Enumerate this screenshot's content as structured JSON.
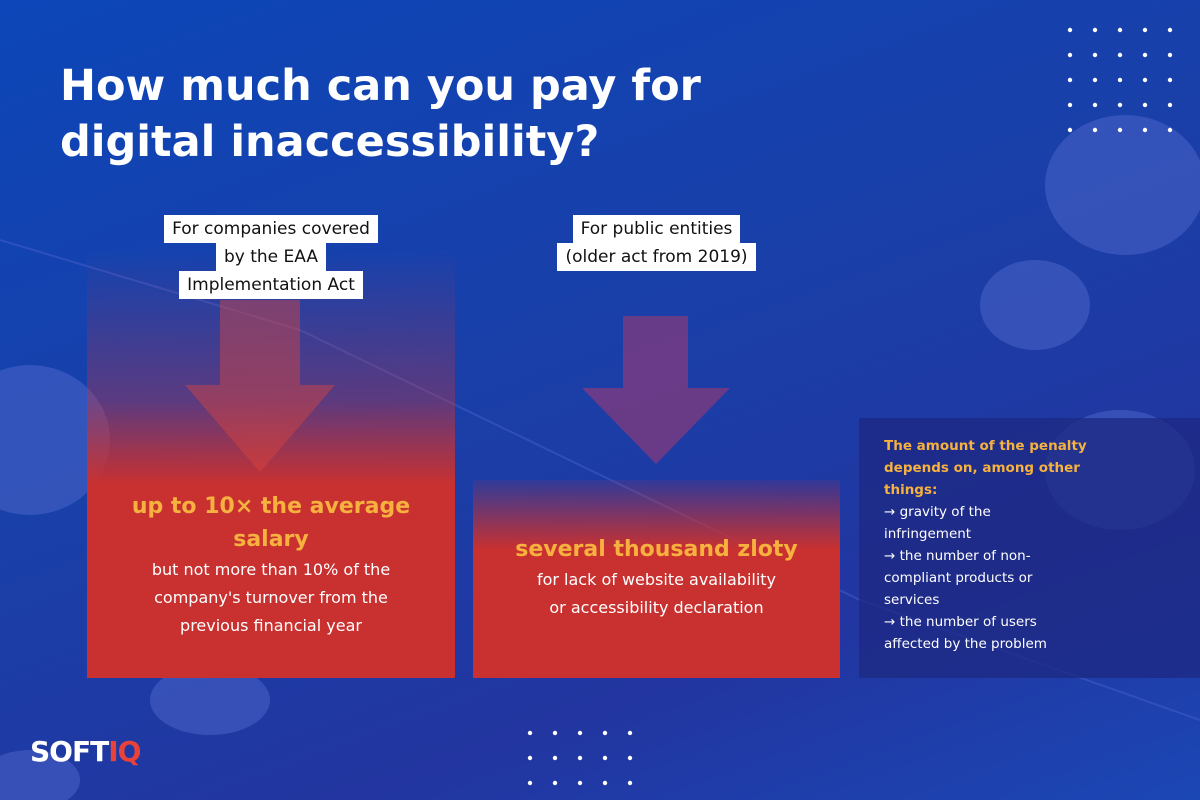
{
  "title": {
    "lines": [
      "How much can you pay for",
      "digital inaccessibility?"
    ]
  },
  "columns": [
    {
      "label": [
        "For companies covered",
        "by the EAA",
        "Implementation Act"
      ],
      "headline": [
        "up to 10× the average",
        "salary"
      ],
      "body": [
        "but not more than 10% of the",
        "company's turnover from the",
        "previous financial year"
      ]
    },
    {
      "label": [
        "For public entities",
        "(older act from 2019)"
      ],
      "headline": [
        "several thousand zloty"
      ],
      "body": [
        "for lack of website availability",
        "or accessibility declaration"
      ]
    }
  ],
  "note": {
    "heading": [
      "The amount of the penalty",
      "depends on, among other",
      "things:"
    ],
    "items": [
      "→ gravity of the",
      "infringement",
      "→ the number of non-",
      "compliant products or",
      "services",
      "→ the number of users",
      "affected by the problem"
    ]
  },
  "logo": {
    "first": "SOFT",
    "second": "IQ"
  }
}
